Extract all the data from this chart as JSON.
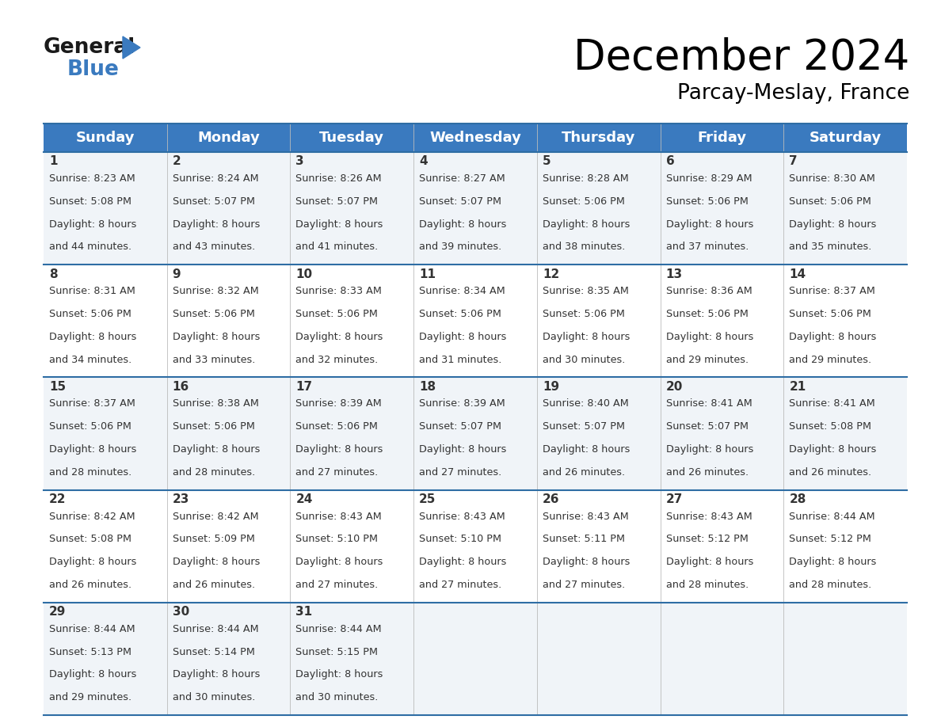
{
  "title": "December 2024",
  "subtitle": "Parcay-Meslay, France",
  "header_bg": "#3a7abf",
  "header_text": "#ffffff",
  "days_of_week": [
    "Sunday",
    "Monday",
    "Tuesday",
    "Wednesday",
    "Thursday",
    "Friday",
    "Saturday"
  ],
  "row_bg_odd": "#f0f4f8",
  "row_bg_even": "#ffffff",
  "line_color": "#2e6da4",
  "text_color": "#333333",
  "calendar_data": [
    [
      {
        "day": 1,
        "sunrise": "8:23 AM",
        "sunset": "5:08 PM",
        "daylight": "8 hours",
        "daylight2": "and 44 minutes."
      },
      {
        "day": 2,
        "sunrise": "8:24 AM",
        "sunset": "5:07 PM",
        "daylight": "8 hours",
        "daylight2": "and 43 minutes."
      },
      {
        "day": 3,
        "sunrise": "8:26 AM",
        "sunset": "5:07 PM",
        "daylight": "8 hours",
        "daylight2": "and 41 minutes."
      },
      {
        "day": 4,
        "sunrise": "8:27 AM",
        "sunset": "5:07 PM",
        "daylight": "8 hours",
        "daylight2": "and 39 minutes."
      },
      {
        "day": 5,
        "sunrise": "8:28 AM",
        "sunset": "5:06 PM",
        "daylight": "8 hours",
        "daylight2": "and 38 minutes."
      },
      {
        "day": 6,
        "sunrise": "8:29 AM",
        "sunset": "5:06 PM",
        "daylight": "8 hours",
        "daylight2": "and 37 minutes."
      },
      {
        "day": 7,
        "sunrise": "8:30 AM",
        "sunset": "5:06 PM",
        "daylight": "8 hours",
        "daylight2": "and 35 minutes."
      }
    ],
    [
      {
        "day": 8,
        "sunrise": "8:31 AM",
        "sunset": "5:06 PM",
        "daylight": "8 hours",
        "daylight2": "and 34 minutes."
      },
      {
        "day": 9,
        "sunrise": "8:32 AM",
        "sunset": "5:06 PM",
        "daylight": "8 hours",
        "daylight2": "and 33 minutes."
      },
      {
        "day": 10,
        "sunrise": "8:33 AM",
        "sunset": "5:06 PM",
        "daylight": "8 hours",
        "daylight2": "and 32 minutes."
      },
      {
        "day": 11,
        "sunrise": "8:34 AM",
        "sunset": "5:06 PM",
        "daylight": "8 hours",
        "daylight2": "and 31 minutes."
      },
      {
        "day": 12,
        "sunrise": "8:35 AM",
        "sunset": "5:06 PM",
        "daylight": "8 hours",
        "daylight2": "and 30 minutes."
      },
      {
        "day": 13,
        "sunrise": "8:36 AM",
        "sunset": "5:06 PM",
        "daylight": "8 hours",
        "daylight2": "and 29 minutes."
      },
      {
        "day": 14,
        "sunrise": "8:37 AM",
        "sunset": "5:06 PM",
        "daylight": "8 hours",
        "daylight2": "and 29 minutes."
      }
    ],
    [
      {
        "day": 15,
        "sunrise": "8:37 AM",
        "sunset": "5:06 PM",
        "daylight": "8 hours",
        "daylight2": "and 28 minutes."
      },
      {
        "day": 16,
        "sunrise": "8:38 AM",
        "sunset": "5:06 PM",
        "daylight": "8 hours",
        "daylight2": "and 28 minutes."
      },
      {
        "day": 17,
        "sunrise": "8:39 AM",
        "sunset": "5:06 PM",
        "daylight": "8 hours",
        "daylight2": "and 27 minutes."
      },
      {
        "day": 18,
        "sunrise": "8:39 AM",
        "sunset": "5:07 PM",
        "daylight": "8 hours",
        "daylight2": "and 27 minutes."
      },
      {
        "day": 19,
        "sunrise": "8:40 AM",
        "sunset": "5:07 PM",
        "daylight": "8 hours",
        "daylight2": "and 26 minutes."
      },
      {
        "day": 20,
        "sunrise": "8:41 AM",
        "sunset": "5:07 PM",
        "daylight": "8 hours",
        "daylight2": "and 26 minutes."
      },
      {
        "day": 21,
        "sunrise": "8:41 AM",
        "sunset": "5:08 PM",
        "daylight": "8 hours",
        "daylight2": "and 26 minutes."
      }
    ],
    [
      {
        "day": 22,
        "sunrise": "8:42 AM",
        "sunset": "5:08 PM",
        "daylight": "8 hours",
        "daylight2": "and 26 minutes."
      },
      {
        "day": 23,
        "sunrise": "8:42 AM",
        "sunset": "5:09 PM",
        "daylight": "8 hours",
        "daylight2": "and 26 minutes."
      },
      {
        "day": 24,
        "sunrise": "8:43 AM",
        "sunset": "5:10 PM",
        "daylight": "8 hours",
        "daylight2": "and 27 minutes."
      },
      {
        "day": 25,
        "sunrise": "8:43 AM",
        "sunset": "5:10 PM",
        "daylight": "8 hours",
        "daylight2": "and 27 minutes."
      },
      {
        "day": 26,
        "sunrise": "8:43 AM",
        "sunset": "5:11 PM",
        "daylight": "8 hours",
        "daylight2": "and 27 minutes."
      },
      {
        "day": 27,
        "sunrise": "8:43 AM",
        "sunset": "5:12 PM",
        "daylight": "8 hours",
        "daylight2": "and 28 minutes."
      },
      {
        "day": 28,
        "sunrise": "8:44 AM",
        "sunset": "5:12 PM",
        "daylight": "8 hours",
        "daylight2": "and 28 minutes."
      }
    ],
    [
      {
        "day": 29,
        "sunrise": "8:44 AM",
        "sunset": "5:13 PM",
        "daylight": "8 hours",
        "daylight2": "and 29 minutes."
      },
      {
        "day": 30,
        "sunrise": "8:44 AM",
        "sunset": "5:14 PM",
        "daylight": "8 hours",
        "daylight2": "and 30 minutes."
      },
      {
        "day": 31,
        "sunrise": "8:44 AM",
        "sunset": "5:15 PM",
        "daylight": "8 hours",
        "daylight2": "and 30 minutes."
      },
      null,
      null,
      null,
      null
    ]
  ]
}
